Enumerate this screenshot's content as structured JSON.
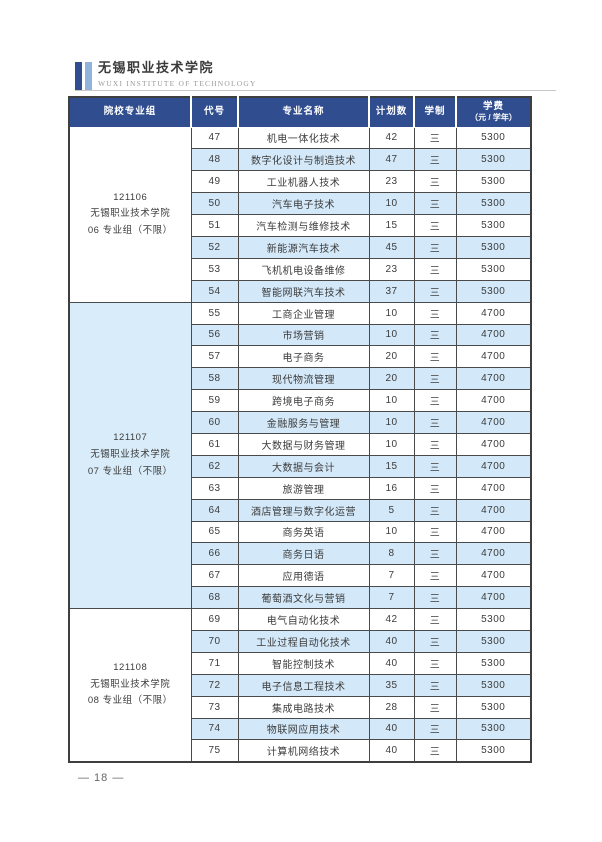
{
  "header": {
    "school_name": "无锡职业技术学院",
    "school_name_en": "WUXI  INSTITUTE  OF  TECHNOLOGY"
  },
  "colors": {
    "table_header_bg": "#2F4D8F",
    "row_alt_bg": "#D3E8F8",
    "logo_bar_dark": "#2F4D8F",
    "logo_bar_light": "#8FB3DA",
    "border": "#4A4A4A"
  },
  "table": {
    "headers": [
      "院校专业组",
      "代号",
      "专业名称",
      "计划数",
      "学制",
      "学费",
      "（元 / 学年）"
    ],
    "groups": [
      {
        "id": "121106",
        "school": "无锡职业技术学院",
        "label": "06 专业组（不限）",
        "rows": [
          {
            "code": "47",
            "major": "机电一体化技术",
            "plan": "42",
            "years": "三",
            "fee": "5300"
          },
          {
            "code": "48",
            "major": "数字化设计与制造技术",
            "plan": "47",
            "years": "三",
            "fee": "5300"
          },
          {
            "code": "49",
            "major": "工业机器人技术",
            "plan": "23",
            "years": "三",
            "fee": "5300"
          },
          {
            "code": "50",
            "major": "汽车电子技术",
            "plan": "10",
            "years": "三",
            "fee": "5300"
          },
          {
            "code": "51",
            "major": "汽车检测与维修技术",
            "plan": "15",
            "years": "三",
            "fee": "5300"
          },
          {
            "code": "52",
            "major": "新能源汽车技术",
            "plan": "45",
            "years": "三",
            "fee": "5300"
          },
          {
            "code": "53",
            "major": "飞机机电设备维修",
            "plan": "23",
            "years": "三",
            "fee": "5300"
          },
          {
            "code": "54",
            "major": "智能网联汽车技术",
            "plan": "37",
            "years": "三",
            "fee": "5300"
          }
        ]
      },
      {
        "id": "121107",
        "school": "无锡职业技术学院",
        "label": "07 专业组（不限）",
        "rows": [
          {
            "code": "55",
            "major": "工商企业管理",
            "plan": "10",
            "years": "三",
            "fee": "4700"
          },
          {
            "code": "56",
            "major": "市场营销",
            "plan": "10",
            "years": "三",
            "fee": "4700"
          },
          {
            "code": "57",
            "major": "电子商务",
            "plan": "20",
            "years": "三",
            "fee": "4700"
          },
          {
            "code": "58",
            "major": "现代物流管理",
            "plan": "20",
            "years": "三",
            "fee": "4700"
          },
          {
            "code": "59",
            "major": "跨境电子商务",
            "plan": "10",
            "years": "三",
            "fee": "4700"
          },
          {
            "code": "60",
            "major": "金融服务与管理",
            "plan": "10",
            "years": "三",
            "fee": "4700"
          },
          {
            "code": "61",
            "major": "大数据与财务管理",
            "plan": "10",
            "years": "三",
            "fee": "4700"
          },
          {
            "code": "62",
            "major": "大数据与会计",
            "plan": "15",
            "years": "三",
            "fee": "4700"
          },
          {
            "code": "63",
            "major": "旅游管理",
            "plan": "16",
            "years": "三",
            "fee": "4700"
          },
          {
            "code": "64",
            "major": "酒店管理与数字化运营",
            "plan": "5",
            "years": "三",
            "fee": "4700"
          },
          {
            "code": "65",
            "major": "商务英语",
            "plan": "10",
            "years": "三",
            "fee": "4700"
          },
          {
            "code": "66",
            "major": "商务日语",
            "plan": "8",
            "years": "三",
            "fee": "4700"
          },
          {
            "code": "67",
            "major": "应用德语",
            "plan": "7",
            "years": "三",
            "fee": "4700"
          },
          {
            "code": "68",
            "major": "葡萄酒文化与营销",
            "plan": "7",
            "years": "三",
            "fee": "4700"
          }
        ]
      },
      {
        "id": "121108",
        "school": "无锡职业技术学院",
        "label": "08 专业组（不限）",
        "rows": [
          {
            "code": "69",
            "major": "电气自动化技术",
            "plan": "42",
            "years": "三",
            "fee": "5300"
          },
          {
            "code": "70",
            "major": "工业过程自动化技术",
            "plan": "40",
            "years": "三",
            "fee": "5300"
          },
          {
            "code": "71",
            "major": "智能控制技术",
            "plan": "40",
            "years": "三",
            "fee": "5300"
          },
          {
            "code": "72",
            "major": "电子信息工程技术",
            "plan": "35",
            "years": "三",
            "fee": "5300"
          },
          {
            "code": "73",
            "major": "集成电路技术",
            "plan": "28",
            "years": "三",
            "fee": "5300"
          },
          {
            "code": "74",
            "major": "物联网应用技术",
            "plan": "40",
            "years": "三",
            "fee": "5300"
          },
          {
            "code": "75",
            "major": "计算机网络技术",
            "plan": "40",
            "years": "三",
            "fee": "5300"
          }
        ]
      }
    ]
  },
  "footer": {
    "page_number": "— 18 —"
  }
}
